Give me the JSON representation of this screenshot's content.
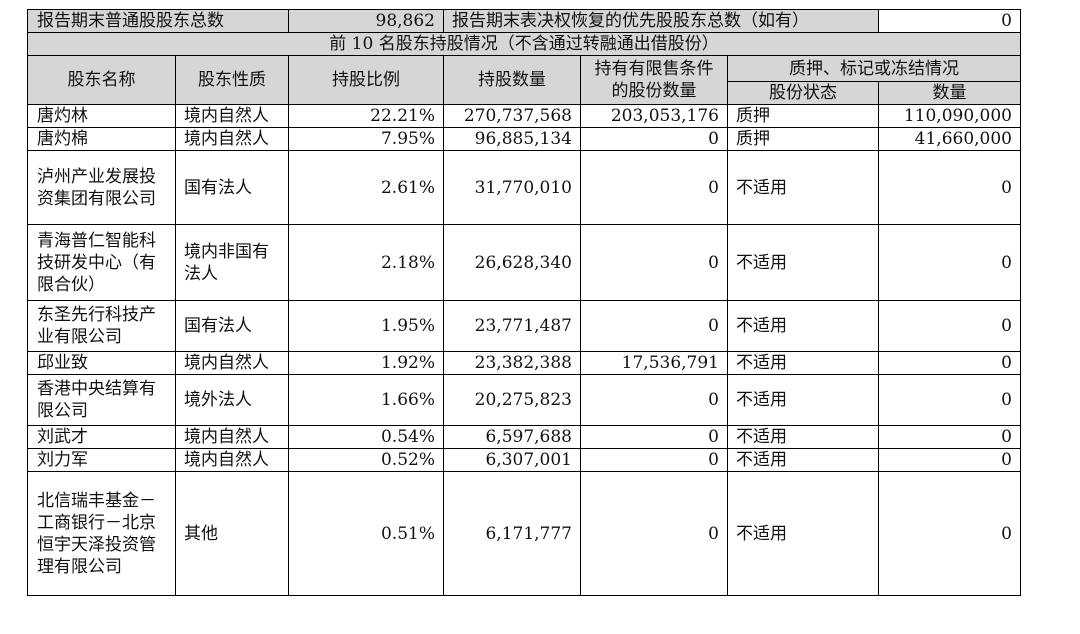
{
  "summary": {
    "common_label": "报告期末普通股股东总数",
    "common_value": "98,862",
    "preferred_label": "报告期末表决权恢复的优先股股东总数（如有）",
    "preferred_value": "0"
  },
  "section_title": "前 10 名股东持股情况（不含通过转融通出借股份）",
  "headers": {
    "name": "股东名称",
    "nature": "股东性质",
    "ratio": "持股比例",
    "quantity": "持股数量",
    "restricted": "持有有限售条件的股份数量",
    "pledge_group": "质押、标记或冻结情况",
    "share_status": "股份状态",
    "count": "数量"
  },
  "rows": [
    {
      "name": "唐灼林",
      "nature": "境内自然人",
      "ratio": "22.21%",
      "quantity": "270,737,568",
      "restricted": "203,053,176",
      "status": "质押",
      "count": "110,090,000"
    },
    {
      "name": "唐灼棉",
      "nature": "境内自然人",
      "ratio": "7.95%",
      "quantity": "96,885,134",
      "restricted": "0",
      "status": "质押",
      "count": "41,660,000"
    },
    {
      "name": "泸州产业发展投资集团有限公司",
      "nature": "国有法人",
      "ratio": "2.61%",
      "quantity": "31,770,010",
      "restricted": "0",
      "status": "不适用",
      "count": "0"
    },
    {
      "name": "青海普仁智能科技研发中心（有限合伙）",
      "nature": "境内非国有法人",
      "ratio": "2.18%",
      "quantity": "26,628,340",
      "restricted": "0",
      "status": "不适用",
      "count": "0"
    },
    {
      "name": "东圣先行科技产业有限公司",
      "nature": "国有法人",
      "ratio": "1.95%",
      "quantity": "23,771,487",
      "restricted": "0",
      "status": "不适用",
      "count": "0"
    },
    {
      "name": "邱业致",
      "nature": "境内自然人",
      "ratio": "1.92%",
      "quantity": "23,382,388",
      "restricted": "17,536,791",
      "status": "不适用",
      "count": "0"
    },
    {
      "name": "香港中央结算有限公司",
      "nature": "境外法人",
      "ratio": "1.66%",
      "quantity": "20,275,823",
      "restricted": "0",
      "status": "不适用",
      "count": "0"
    },
    {
      "name": "刘武才",
      "nature": "境内自然人",
      "ratio": "0.54%",
      "quantity": "6,597,688",
      "restricted": "0",
      "status": "不适用",
      "count": "0"
    },
    {
      "name": "刘力军",
      "nature": "境内自然人",
      "ratio": "0.52%",
      "quantity": "6,307,001",
      "restricted": "0",
      "status": "不适用",
      "count": "0"
    },
    {
      "name": "北信瑞丰基金－工商银行－北京恒宇天泽投资管理有限公司",
      "nature": "其他",
      "ratio": "0.51%",
      "quantity": "6,171,777",
      "restricted": "0",
      "status": "不适用",
      "count": "0"
    }
  ]
}
